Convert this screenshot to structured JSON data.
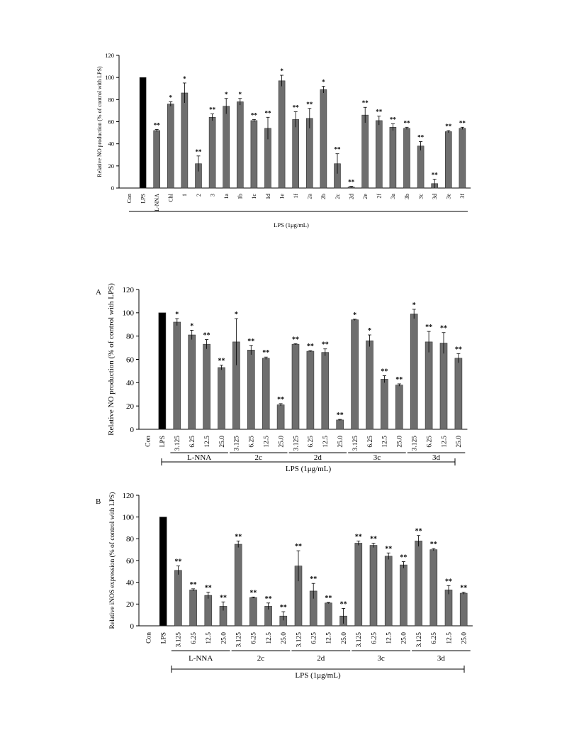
{
  "colors": {
    "lps_bar": "#000000",
    "bar": "#6e6e6e",
    "axis": "#000000"
  },
  "chart_data": [
    {
      "id": "top",
      "type": "bar",
      "ylabel": "Relative NO production (% of control with LPS)",
      "ylim": [
        0,
        120
      ],
      "yticks": [
        0,
        20,
        40,
        60,
        80,
        100,
        120
      ],
      "categories": [
        "Con",
        "LPS",
        "L-NNA",
        "Chl",
        "1",
        "2",
        "3",
        "1a",
        "1b",
        "1c",
        "1d",
        "1e",
        "1f",
        "2a",
        "2b",
        "2c",
        "2d",
        "2e",
        "2f",
        "3a",
        "3b",
        "3c",
        "3d",
        "3e",
        "3f"
      ],
      "values": [
        0,
        100,
        52,
        76,
        86,
        22,
        64,
        74,
        78,
        61,
        54,
        97,
        62,
        63,
        89,
        22,
        1,
        66,
        61,
        55,
        54,
        38,
        4,
        51,
        54
      ],
      "errors": [
        0,
        0,
        1,
        2,
        9,
        7,
        3,
        7,
        3,
        1,
        10,
        5,
        7,
        9,
        3,
        9,
        0.5,
        7,
        4,
        3,
        1,
        4,
        4,
        1,
        1
      ],
      "significance": [
        "",
        "",
        "**",
        "*",
        "*",
        "**",
        "**",
        "*",
        "*",
        "**",
        "**",
        "*",
        "**",
        "**",
        "*",
        "**",
        "**",
        "**",
        "**",
        "**",
        "**",
        "**",
        "**",
        "**",
        "**"
      ],
      "group_label": "LPS (1μg/mL)",
      "subgroups": []
    },
    {
      "id": "A",
      "panel_label": "A",
      "type": "bar",
      "ylabel": "Relative NO production (% of control with LPS)",
      "ylim": [
        0,
        120
      ],
      "yticks": [
        0,
        20,
        40,
        60,
        80,
        100,
        120
      ],
      "categories": [
        "Con",
        "LPS",
        "3.125",
        "6.25",
        "12.5",
        "25.0",
        "3.125",
        "6.25",
        "12.5",
        "25.0",
        "3.125",
        "6.25",
        "12.5",
        "25.0",
        "3.125",
        "6.25",
        "12.5",
        "25.0",
        "3.125",
        "6.25",
        "12.5",
        "25.0"
      ],
      "values": [
        0,
        100,
        92,
        81,
        73,
        53,
        75,
        68,
        61,
        21,
        73,
        67,
        66,
        8,
        94,
        76,
        43,
        38,
        99,
        75,
        74,
        61
      ],
      "errors": [
        0,
        0,
        3,
        4,
        4,
        2,
        20,
        4,
        1,
        1,
        0.5,
        0.5,
        3,
        0.5,
        0.5,
        5,
        3,
        1,
        4,
        9,
        9,
        4
      ],
      "significance": [
        "",
        "",
        "*",
        "*",
        "**",
        "**",
        "*",
        "**",
        "**",
        "**",
        "**",
        "**",
        "**",
        "**",
        "*",
        "*",
        "**",
        "**",
        "*",
        "**",
        "**",
        "**"
      ],
      "group_label": "LPS (1μg/mL)",
      "subgroups": [
        {
          "label": "L-NNA",
          "start": 2,
          "end": 5
        },
        {
          "label": "2c",
          "start": 6,
          "end": 9
        },
        {
          "label": "2d",
          "start": 10,
          "end": 13
        },
        {
          "label": "3c",
          "start": 14,
          "end": 17
        },
        {
          "label": "3d",
          "start": 18,
          "end": 21
        }
      ]
    },
    {
      "id": "B",
      "panel_label": "B",
      "type": "bar",
      "ylabel": "Relative iNOS expression (% of control with LPS)",
      "ylim": [
        0,
        120
      ],
      "yticks": [
        0,
        20,
        40,
        60,
        80,
        100,
        120
      ],
      "categories": [
        "Con",
        "LPS",
        "3.125",
        "6.25",
        "12.5",
        "25.0",
        "3.125",
        "6.25",
        "12.5",
        "25.0",
        "3.125",
        "6.25",
        "12.5",
        "25.0",
        "3.125",
        "6.25",
        "12.5",
        "25.0",
        "3.125",
        "6.25",
        "12.5",
        "25.0"
      ],
      "values": [
        0,
        100,
        51,
        33,
        28,
        18,
        75,
        26,
        18,
        9,
        55,
        32,
        21,
        9,
        76,
        74,
        64,
        56,
        78,
        70,
        33,
        30
      ],
      "errors": [
        0,
        0,
        4,
        1,
        3,
        4,
        3,
        0.5,
        3,
        4,
        14,
        7,
        0.5,
        7,
        2,
        2,
        3,
        3,
        5,
        1,
        4,
        1
      ],
      "significance": [
        "",
        "",
        "**",
        "**",
        "**",
        "**",
        "**",
        "**",
        "**",
        "**",
        "**",
        "**",
        "**",
        "**",
        "**",
        "**",
        "**",
        "**",
        "**",
        "**",
        "**",
        "**"
      ],
      "group_label": "LPS (1μg/mL)",
      "subgroups": [
        {
          "label": "L-NNA",
          "start": 2,
          "end": 5
        },
        {
          "label": "2c",
          "start": 6,
          "end": 9
        },
        {
          "label": "2d",
          "start": 10,
          "end": 13
        },
        {
          "label": "3c",
          "start": 14,
          "end": 17
        },
        {
          "label": "3d",
          "start": 18,
          "end": 21
        }
      ]
    }
  ]
}
